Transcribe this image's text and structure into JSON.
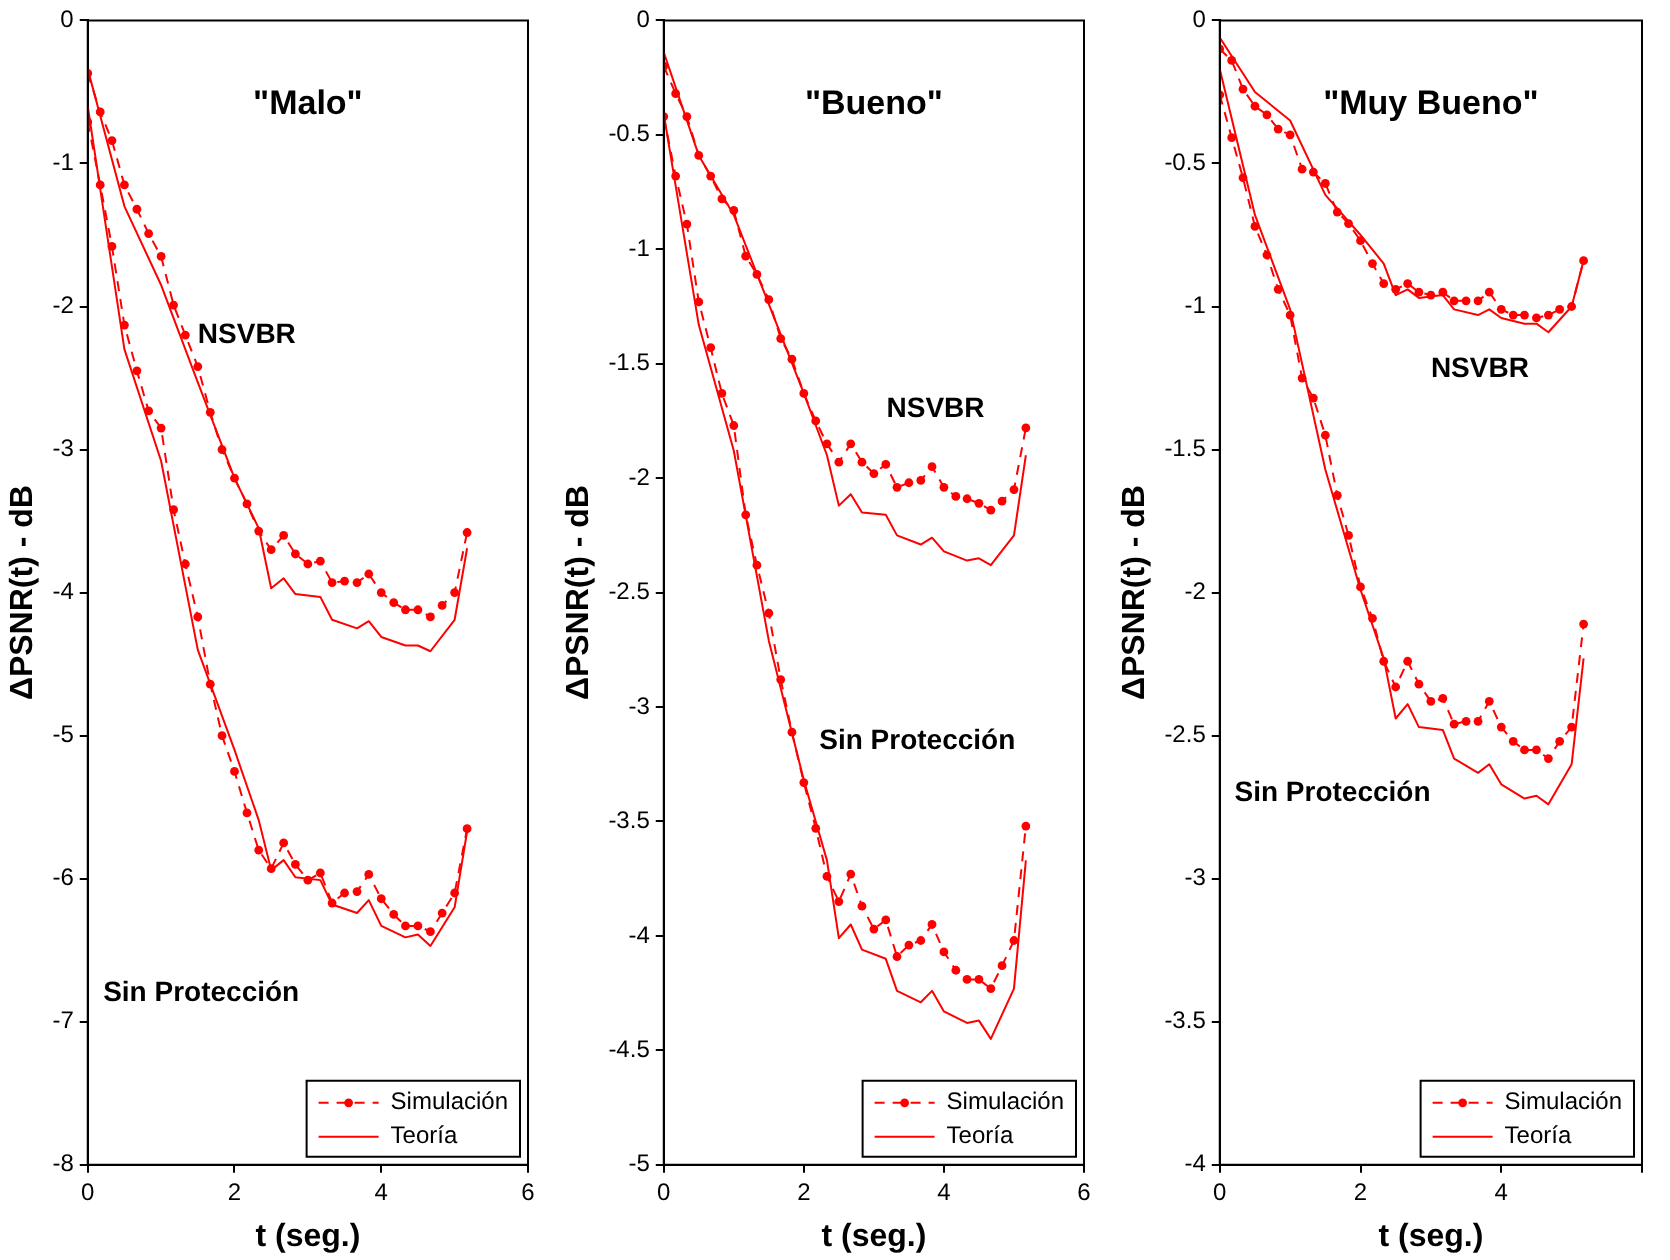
{
  "chart_data": [
    {
      "type": "line",
      "title": "\"Malo\"",
      "xlabel": "t (seg.)",
      "ylabel": "ΔPSNR(t) - dB",
      "xlim": [
        0,
        6
      ],
      "xticks": [
        0,
        2,
        4,
        6
      ],
      "ylim": [
        -8,
        0
      ],
      "yticks": [
        -8,
        -7,
        -6,
        -5,
        -4,
        -3,
        -2,
        -1,
        0
      ],
      "grid": false,
      "legend": "bottom right",
      "annotations": [
        "NSVBR",
        "Sin Protección"
      ],
      "series": [
        {
          "name": "Simulación",
          "color": "#ff0000",
          "line_style": "dashed",
          "marker": "circle",
          "x": [
            0,
            0.17,
            0.33,
            0.5,
            0.67,
            0.83,
            1,
            1.17,
            1.33,
            1.5,
            1.67,
            1.83,
            2,
            2.17,
            2.33,
            2.5,
            2.67,
            2.83,
            3,
            3.17,
            3.33,
            3.5,
            3.67,
            3.83,
            4,
            4.17,
            4.33,
            4.5,
            4.67,
            4.83,
            5,
            5.17
          ],
          "values": [
            -0.37,
            -0.64,
            -0.84,
            -1.15,
            -1.32,
            -1.49,
            -1.65,
            -1.99,
            -2.2,
            -2.42,
            -2.74,
            -3.0,
            -3.2,
            -3.38,
            -3.57,
            -3.7,
            -3.6,
            -3.73,
            -3.8,
            -3.78,
            -3.93,
            -3.92,
            -3.93,
            -3.87,
            -4.0,
            -4.07,
            -4.12,
            -4.12,
            -4.17,
            -4.09,
            -4.0,
            -3.58
          ]
        },
        {
          "name": "Teoría",
          "color": "#ff0000",
          "line_style": "solid",
          "marker": "none",
          "x": [
            0,
            0.5,
            1,
            1.5,
            2,
            2.33,
            2.5,
            2.67,
            2.83,
            3.17,
            3.33,
            3.67,
            3.83,
            4,
            4.33,
            4.5,
            4.67,
            5,
            5.17
          ],
          "values": [
            -0.34,
            -1.3,
            -1.85,
            -2.53,
            -3.2,
            -3.55,
            -3.97,
            -3.9,
            -4.01,
            -4.03,
            -4.19,
            -4.25,
            -4.2,
            -4.31,
            -4.37,
            -4.37,
            -4.41,
            -4.19,
            -3.69
          ]
        },
        {
          "color": "#ff0000",
          "line_style": "dashed",
          "marker": "circle",
          "x": [
            0,
            0.17,
            0.33,
            0.5,
            0.67,
            0.83,
            1,
            1.17,
            1.33,
            1.5,
            1.67,
            1.83,
            2,
            2.17,
            2.33,
            2.5,
            2.67,
            2.83,
            3,
            3.17,
            3.33,
            3.5,
            3.67,
            3.83,
            4,
            4.17,
            4.33,
            4.5,
            4.67,
            4.83,
            5,
            5.17
          ],
          "values": [
            -0.71,
            -1.15,
            -1.58,
            -2.13,
            -2.45,
            -2.73,
            -2.85,
            -3.42,
            -3.8,
            -4.17,
            -4.64,
            -5.0,
            -5.25,
            -5.54,
            -5.8,
            -5.93,
            -5.75,
            -5.9,
            -6.01,
            -5.96,
            -6.17,
            -6.1,
            -6.09,
            -5.97,
            -6.14,
            -6.25,
            -6.33,
            -6.33,
            -6.37,
            -6.24,
            -6.1,
            -5.65
          ]
        },
        {
          "color": "#ff0000",
          "line_style": "solid",
          "marker": "none",
          "x": [
            0,
            0.5,
            1,
            1.5,
            2,
            2.33,
            2.5,
            2.67,
            2.83,
            3.17,
            3.33,
            3.67,
            3.83,
            4,
            4.33,
            4.5,
            4.67,
            5,
            5.17
          ],
          "values": [
            -0.6,
            -2.3,
            -3.08,
            -4.4,
            -5.1,
            -5.59,
            -5.94,
            -5.87,
            -5.99,
            -6.01,
            -6.18,
            -6.24,
            -6.15,
            -6.33,
            -6.41,
            -6.39,
            -6.47,
            -6.2,
            -5.67
          ]
        }
      ]
    },
    {
      "type": "line",
      "title": "\"Bueno\"",
      "xlabel": "t (seg.)",
      "ylabel": "ΔPSNR(t) - dB",
      "xlim": [
        0,
        6
      ],
      "xticks": [
        0,
        2,
        4,
        6
      ],
      "ylim": [
        -5,
        0
      ],
      "yticks": [
        -5,
        -4.5,
        -4,
        -3.5,
        -3,
        -2.5,
        -2,
        -1.5,
        -1,
        -0.5,
        0
      ],
      "grid": false,
      "legend": "bottom right",
      "annotations": [
        "NSVBR",
        "Sin Protección"
      ],
      "series": [
        {
          "name": "Simulación",
          "color": "#ff0000",
          "line_style": "dashed",
          "marker": "circle",
          "x": [
            0,
            0.17,
            0.33,
            0.5,
            0.67,
            0.83,
            1,
            1.17,
            1.33,
            1.5,
            1.67,
            1.83,
            2,
            2.17,
            2.33,
            2.5,
            2.67,
            2.83,
            3,
            3.17,
            3.33,
            3.5,
            3.67,
            3.83,
            4,
            4.17,
            4.33,
            4.5,
            4.67,
            4.83,
            5,
            5.17
          ],
          "values": [
            -0.2,
            -0.32,
            -0.42,
            -0.59,
            -0.68,
            -0.78,
            -0.83,
            -1.03,
            -1.11,
            -1.22,
            -1.39,
            -1.48,
            -1.63,
            -1.75,
            -1.85,
            -1.93,
            -1.85,
            -1.93,
            -1.98,
            -1.94,
            -2.04,
            -2.02,
            -2.01,
            -1.95,
            -2.04,
            -2.08,
            -2.09,
            -2.11,
            -2.14,
            -2.1,
            -2.05,
            -1.78
          ]
        },
        {
          "name": "Teoría",
          "color": "#ff0000",
          "line_style": "solid",
          "marker": "none",
          "x": [
            0,
            0.5,
            1,
            1.5,
            2,
            2.33,
            2.5,
            2.67,
            2.83,
            3.17,
            3.33,
            3.67,
            3.83,
            4,
            4.33,
            4.5,
            4.67,
            5,
            5.17
          ],
          "values": [
            -0.14,
            -0.59,
            -0.85,
            -1.24,
            -1.63,
            -1.9,
            -2.12,
            -2.07,
            -2.15,
            -2.16,
            -2.25,
            -2.29,
            -2.26,
            -2.32,
            -2.36,
            -2.35,
            -2.38,
            -2.25,
            -1.9
          ]
        },
        {
          "color": "#ff0000",
          "line_style": "dashed",
          "marker": "circle",
          "x": [
            0,
            0.17,
            0.33,
            0.5,
            0.67,
            0.83,
            1,
            1.17,
            1.33,
            1.5,
            1.67,
            1.83,
            2,
            2.17,
            2.33,
            2.5,
            2.67,
            2.83,
            3,
            3.17,
            3.33,
            3.5,
            3.67,
            3.83,
            4,
            4.17,
            4.33,
            4.5,
            4.67,
            4.83,
            5,
            5.17
          ],
          "values": [
            -0.42,
            -0.68,
            -0.89,
            -1.23,
            -1.43,
            -1.63,
            -1.77,
            -2.16,
            -2.38,
            -2.59,
            -2.88,
            -3.11,
            -3.33,
            -3.53,
            -3.74,
            -3.85,
            -3.73,
            -3.87,
            -3.97,
            -3.93,
            -4.09,
            -4.04,
            -4.02,
            -3.95,
            -4.07,
            -4.15,
            -4.19,
            -4.19,
            -4.23,
            -4.13,
            -4.02,
            -3.52
          ]
        },
        {
          "color": "#ff0000",
          "line_style": "solid",
          "marker": "none",
          "x": [
            0,
            0.5,
            1,
            1.5,
            2,
            2.33,
            2.5,
            2.67,
            2.83,
            3.17,
            3.33,
            3.67,
            3.83,
            4,
            4.33,
            4.5,
            4.67,
            5,
            5.17
          ],
          "values": [
            -0.41,
            -1.33,
            -1.88,
            -2.71,
            -3.32,
            -3.67,
            -4.01,
            -3.95,
            -4.06,
            -4.1,
            -4.24,
            -4.29,
            -4.24,
            -4.33,
            -4.38,
            -4.37,
            -4.45,
            -4.23,
            -3.67
          ]
        }
      ]
    },
    {
      "type": "line",
      "title": "\"Muy Bueno\"",
      "xlabel": "t (seg.)",
      "ylabel": "ΔPSNR(t) - dB",
      "xlim": [
        0,
        6
      ],
      "xticks": [
        0,
        2,
        4,
        {
          "value": 6,
          "label": null
        }
      ],
      "ylim": [
        -4,
        0
      ],
      "yticks": [
        -4,
        -3.5,
        -3,
        -2.5,
        -2,
        -1.5,
        -1,
        -0.5,
        0
      ],
      "grid": false,
      "legend": "bottom right",
      "annotations": [
        "NSVBR",
        "Sin Protección"
      ],
      "series": [
        {
          "name": "Simulación",
          "color": "#ff0000",
          "line_style": "dashed",
          "marker": "circle",
          "x": [
            0,
            0.17,
            0.33,
            0.5,
            0.67,
            0.83,
            1,
            1.17,
            1.33,
            1.5,
            1.67,
            1.83,
            2,
            2.17,
            2.33,
            2.5,
            2.67,
            2.83,
            3,
            3.17,
            3.33,
            3.5,
            3.67,
            3.83,
            4,
            4.17,
            4.33,
            4.5,
            4.67,
            4.83,
            5,
            5.17
          ],
          "values": [
            -0.1,
            -0.14,
            -0.24,
            -0.3,
            -0.33,
            -0.38,
            -0.4,
            -0.52,
            -0.53,
            -0.57,
            -0.67,
            -0.71,
            -0.77,
            -0.85,
            -0.92,
            -0.94,
            -0.92,
            -0.95,
            -0.96,
            -0.95,
            -0.98,
            -0.98,
            -0.98,
            -0.95,
            -1.01,
            -1.03,
            -1.03,
            -1.04,
            -1.03,
            -1.01,
            -1.0,
            -0.84
          ]
        },
        {
          "name": "Teoría",
          "color": "#ff0000",
          "line_style": "solid",
          "marker": "none",
          "x": [
            0,
            0.5,
            1,
            1.5,
            2,
            2.33,
            2.5,
            2.67,
            2.83,
            3.17,
            3.33,
            3.67,
            3.83,
            4,
            4.33,
            4.5,
            4.67,
            5,
            5.17
          ],
          "values": [
            -0.06,
            -0.25,
            -0.35,
            -0.61,
            -0.75,
            -0.85,
            -0.96,
            -0.94,
            -0.97,
            -0.96,
            -1.01,
            -1.03,
            -1.01,
            -1.04,
            -1.06,
            -1.06,
            -1.09,
            -1.0,
            -0.84
          ]
        },
        {
          "color": "#ff0000",
          "line_style": "dashed",
          "marker": "circle",
          "x": [
            0,
            0.17,
            0.33,
            0.5,
            0.67,
            0.83,
            1,
            1.17,
            1.33,
            1.5,
            1.67,
            1.83,
            2,
            2.17,
            2.33,
            2.5,
            2.67,
            2.83,
            3,
            3.17,
            3.33,
            3.5,
            3.67,
            3.83,
            4,
            4.17,
            4.33,
            4.5,
            4.67,
            4.83,
            5,
            5.17
          ],
          "values": [
            -0.26,
            -0.41,
            -0.55,
            -0.72,
            -0.82,
            -0.94,
            -1.03,
            -1.25,
            -1.32,
            -1.45,
            -1.66,
            -1.8,
            -1.98,
            -2.09,
            -2.24,
            -2.33,
            -2.24,
            -2.32,
            -2.38,
            -2.37,
            -2.46,
            -2.45,
            -2.45,
            -2.38,
            -2.47,
            -2.52,
            -2.55,
            -2.55,
            -2.58,
            -2.52,
            -2.47,
            -2.11
          ]
        },
        {
          "color": "#ff0000",
          "line_style": "solid",
          "marker": "none",
          "x": [
            0,
            0.5,
            1,
            1.5,
            2,
            2.33,
            2.5,
            2.67,
            2.83,
            3.17,
            3.33,
            3.67,
            3.83,
            4,
            4.33,
            4.5,
            4.67,
            5,
            5.17
          ],
          "values": [
            -0.17,
            -0.68,
            -1.01,
            -1.57,
            -1.99,
            -2.23,
            -2.44,
            -2.39,
            -2.47,
            -2.48,
            -2.58,
            -2.63,
            -2.6,
            -2.67,
            -2.72,
            -2.71,
            -2.74,
            -2.6,
            -2.23
          ]
        }
      ]
    }
  ]
}
